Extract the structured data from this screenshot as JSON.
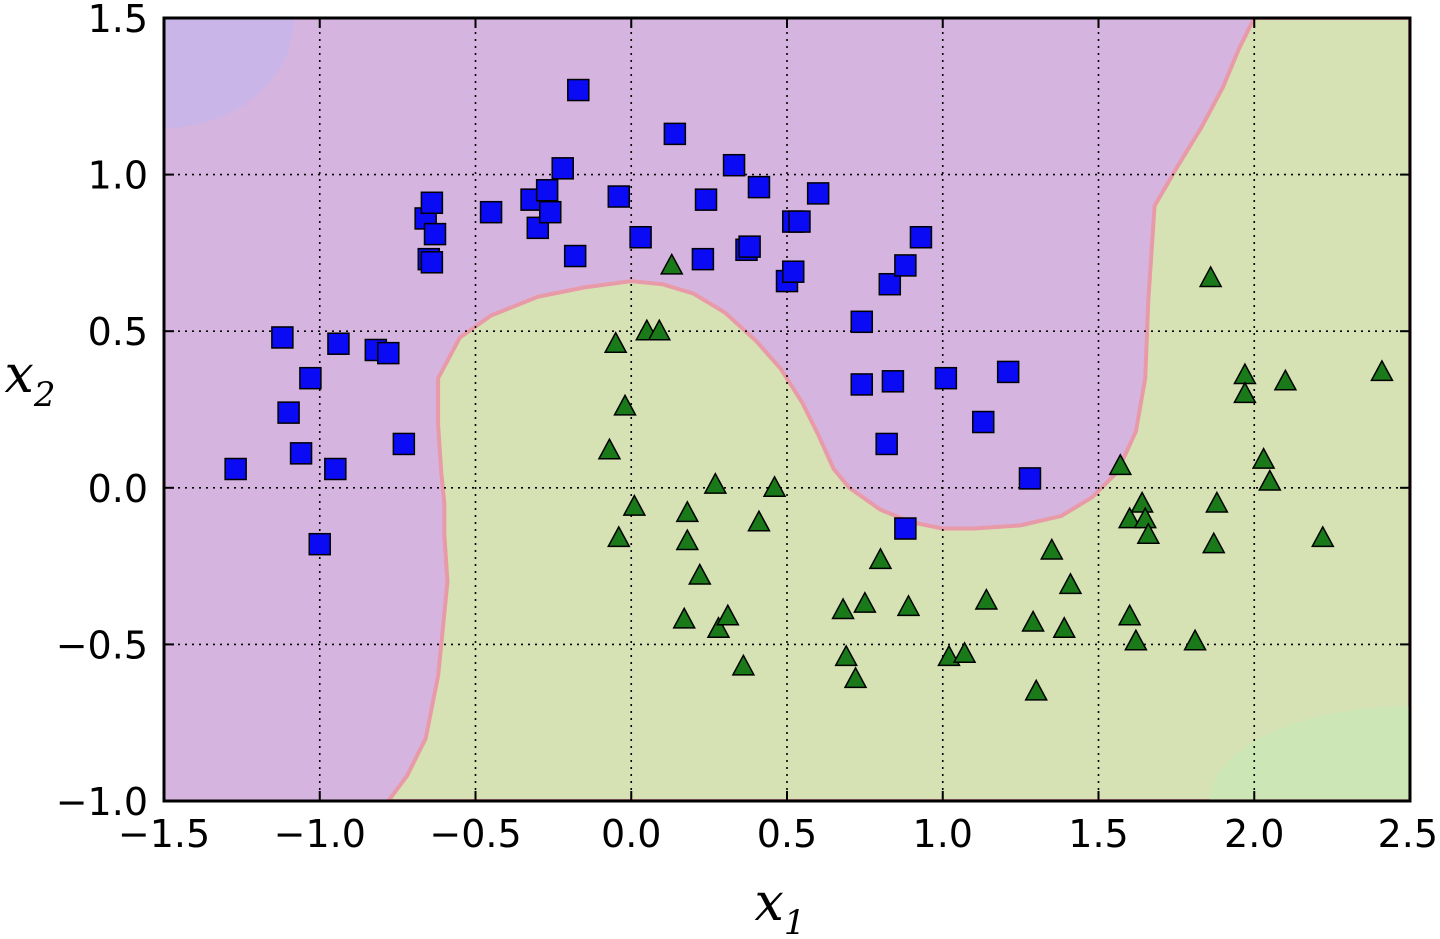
{
  "chart_data": {
    "type": "scatter",
    "title": "",
    "xlabel": "x",
    "xlabel_sub": "1",
    "ylabel": "x",
    "ylabel_sub": "2",
    "xlim": [
      -1.5,
      2.5
    ],
    "ylim": [
      -1.0,
      1.5
    ],
    "xticks": [
      -1.5,
      -1.0,
      -0.5,
      0.0,
      0.5,
      1.0,
      1.5,
      2.0,
      2.5
    ],
    "xtick_labels": [
      "−1.5",
      "−1.0",
      "−0.5",
      "0.0",
      "0.5",
      "1.0",
      "1.5",
      "2.0",
      "2.5"
    ],
    "yticks": [
      -1.0,
      -0.5,
      0.0,
      0.5,
      1.0,
      1.5
    ],
    "ytick_labels": [
      "−1.0",
      "−0.5",
      "0.0",
      "0.5",
      "1.0",
      "1.5"
    ],
    "grid": true,
    "grid_style": "dotted",
    "decision_regions": {
      "class0_color": "#d6b4e0",
      "class1_color": "#d6e2b4",
      "outer_class0_color": "#c2b6ee",
      "outer_class1_color": "#c4eab8",
      "boundary_color": "#e89aa8",
      "boundary": [
        [
          -0.78,
          -1.0
        ],
        [
          -0.72,
          -0.92
        ],
        [
          -0.66,
          -0.8
        ],
        [
          -0.62,
          -0.6
        ],
        [
          -0.59,
          -0.3
        ],
        [
          -0.6,
          -0.15
        ],
        [
          -0.6,
          -0.05
        ],
        [
          -0.61,
          0.05
        ],
        [
          -0.62,
          0.2
        ],
        [
          -0.62,
          0.35
        ],
        [
          -0.55,
          0.48
        ],
        [
          -0.45,
          0.55
        ],
        [
          -0.3,
          0.61
        ],
        [
          -0.15,
          0.64
        ],
        [
          0.0,
          0.66
        ],
        [
          0.1,
          0.65
        ],
        [
          0.2,
          0.62
        ],
        [
          0.3,
          0.56
        ],
        [
          0.4,
          0.47
        ],
        [
          0.48,
          0.38
        ],
        [
          0.55,
          0.27
        ],
        [
          0.6,
          0.17
        ],
        [
          0.65,
          0.06
        ],
        [
          0.7,
          0.0
        ],
        [
          0.8,
          -0.07
        ],
        [
          0.9,
          -0.11
        ],
        [
          1.0,
          -0.13
        ],
        [
          1.1,
          -0.13
        ],
        [
          1.25,
          -0.12
        ],
        [
          1.38,
          -0.09
        ],
        [
          1.48,
          -0.03
        ],
        [
          1.56,
          0.05
        ],
        [
          1.62,
          0.18
        ],
        [
          1.65,
          0.35
        ],
        [
          1.66,
          0.6
        ],
        [
          1.68,
          0.9
        ],
        [
          1.75,
          1.02
        ],
        [
          1.83,
          1.15
        ],
        [
          1.9,
          1.28
        ],
        [
          1.95,
          1.4
        ],
        [
          2.0,
          1.5
        ]
      ]
    },
    "series": [
      {
        "marker": "square",
        "color": "#0a0af5",
        "points": [
          [
            -1.27,
            0.06
          ],
          [
            -1.12,
            0.48
          ],
          [
            -1.1,
            0.24
          ],
          [
            -1.06,
            0.11
          ],
          [
            -1.03,
            0.35
          ],
          [
            -1.0,
            -0.18
          ],
          [
            -0.95,
            0.06
          ],
          [
            -0.94,
            0.46
          ],
          [
            -0.82,
            0.44
          ],
          [
            -0.78,
            0.43
          ],
          [
            -0.73,
            0.14
          ],
          [
            -0.66,
            0.86
          ],
          [
            -0.64,
            0.91
          ],
          [
            -0.63,
            0.81
          ],
          [
            -0.65,
            0.73
          ],
          [
            -0.64,
            0.72
          ],
          [
            -0.45,
            0.88
          ],
          [
            -0.32,
            0.92
          ],
          [
            -0.3,
            0.83
          ],
          [
            -0.27,
            0.95
          ],
          [
            -0.26,
            0.88
          ],
          [
            -0.22,
            1.02
          ],
          [
            -0.18,
            0.74
          ],
          [
            -0.17,
            1.27
          ],
          [
            -0.04,
            0.93
          ],
          [
            0.03,
            0.8
          ],
          [
            0.14,
            1.13
          ],
          [
            0.23,
            0.73
          ],
          [
            0.24,
            0.92
          ],
          [
            0.33,
            1.03
          ],
          [
            0.37,
            0.76
          ],
          [
            0.38,
            0.77
          ],
          [
            0.41,
            0.96
          ],
          [
            0.5,
            0.66
          ],
          [
            0.52,
            0.69
          ],
          [
            0.52,
            0.85
          ],
          [
            0.54,
            0.85
          ],
          [
            0.6,
            0.94
          ],
          [
            0.74,
            0.53
          ],
          [
            0.74,
            0.33
          ],
          [
            0.82,
            0.14
          ],
          [
            0.83,
            0.65
          ],
          [
            0.84,
            0.34
          ],
          [
            0.88,
            0.71
          ],
          [
            0.88,
            -0.13
          ],
          [
            0.93,
            0.8
          ],
          [
            1.01,
            0.35
          ],
          [
            1.13,
            0.21
          ],
          [
            1.21,
            0.37
          ],
          [
            1.28,
            0.03
          ]
        ]
      },
      {
        "marker": "triangle",
        "color": "#1a7a1a",
        "points": [
          [
            -0.07,
            0.12
          ],
          [
            -0.05,
            0.46
          ],
          [
            -0.04,
            -0.16
          ],
          [
            -0.02,
            0.26
          ],
          [
            0.01,
            -0.06
          ],
          [
            0.05,
            0.5
          ],
          [
            0.09,
            0.5
          ],
          [
            0.13,
            0.71
          ],
          [
            0.17,
            -0.42
          ],
          [
            0.18,
            -0.08
          ],
          [
            0.18,
            -0.17
          ],
          [
            0.22,
            -0.28
          ],
          [
            0.27,
            0.01
          ],
          [
            0.28,
            -0.45
          ],
          [
            0.31,
            -0.41
          ],
          [
            0.36,
            -0.57
          ],
          [
            0.41,
            -0.11
          ],
          [
            0.46,
            0.0
          ],
          [
            0.68,
            -0.39
          ],
          [
            0.69,
            -0.54
          ],
          [
            0.72,
            -0.61
          ],
          [
            0.75,
            -0.37
          ],
          [
            0.8,
            -0.23
          ],
          [
            0.89,
            -0.38
          ],
          [
            1.02,
            -0.54
          ],
          [
            1.07,
            -0.53
          ],
          [
            1.14,
            -0.36
          ],
          [
            1.29,
            -0.43
          ],
          [
            1.3,
            -0.65
          ],
          [
            1.35,
            -0.2
          ],
          [
            1.39,
            -0.45
          ],
          [
            1.41,
            -0.31
          ],
          [
            1.57,
            0.07
          ],
          [
            1.6,
            -0.41
          ],
          [
            1.6,
            -0.1
          ],
          [
            1.62,
            -0.49
          ],
          [
            1.64,
            -0.05
          ],
          [
            1.65,
            -0.1
          ],
          [
            1.66,
            -0.15
          ],
          [
            1.81,
            -0.49
          ],
          [
            1.86,
            0.67
          ],
          [
            1.87,
            -0.18
          ],
          [
            1.88,
            -0.05
          ],
          [
            1.97,
            0.36
          ],
          [
            1.97,
            0.3
          ],
          [
            2.03,
            0.09
          ],
          [
            2.05,
            0.02
          ],
          [
            2.1,
            0.34
          ],
          [
            2.22,
            -0.16
          ],
          [
            2.41,
            0.37
          ]
        ]
      }
    ]
  }
}
